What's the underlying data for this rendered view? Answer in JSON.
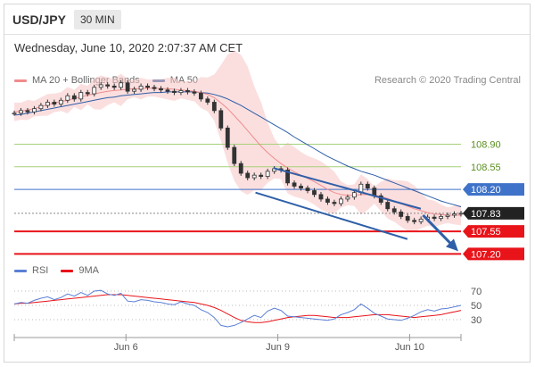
{
  "header": {
    "symbol": "USD/JPY",
    "timeframe": "30 MIN"
  },
  "datetime": "Wednesday, June 10, 2020 2:07:37 AM CET",
  "credit": "Research © 2020 Trading Central",
  "colors": {
    "ma20": "#f08c8c",
    "ma50": "#2f5fa8",
    "band": "#f7c5c5",
    "support_green": "#a6d179",
    "pivot_blue": "#3f73c9",
    "resistance_red": "#e8141a",
    "arrow": "#2f5fa8",
    "rsi": "#5a7fd6",
    "rsi_ma": "#e8141a",
    "current_price_bg": "#222222",
    "grid": "#cccccc"
  },
  "chart_data": [
    {
      "type": "line",
      "legend": [
        "MA 20 + Bollinger Bands",
        "MA 50"
      ],
      "x_tick_labels": [
        "Jun 6",
        "Jun 9",
        "Jun 10"
      ],
      "levels": [
        {
          "value": 108.9,
          "label": "108.90",
          "color": "green"
        },
        {
          "value": 108.55,
          "label": "108.55",
          "color": "green"
        },
        {
          "value": 108.2,
          "label": "108.20",
          "color": "blue"
        },
        {
          "value": 107.83,
          "label": "107.83",
          "color": "black"
        },
        {
          "value": 107.55,
          "label": "107.55",
          "color": "red"
        },
        {
          "value": 107.2,
          "label": "107.20",
          "color": "red"
        }
      ],
      "current_price": 107.83,
      "ylim": [
        107.15,
        109.75
      ],
      "series": [
        {
          "name": "Price",
          "values": [
            109.38,
            109.42,
            109.4,
            109.45,
            109.5,
            109.55,
            109.52,
            109.58,
            109.65,
            109.6,
            109.7,
            109.68,
            109.78,
            109.82,
            109.8,
            109.78,
            109.85,
            109.72,
            109.75,
            109.8,
            109.78,
            109.76,
            109.74,
            109.72,
            109.7,
            109.73,
            109.71,
            109.69,
            109.6,
            109.55,
            109.42,
            109.15,
            108.85,
            108.6,
            108.45,
            108.38,
            108.42,
            108.4,
            108.48,
            108.52,
            108.5,
            108.3,
            108.25,
            108.22,
            108.18,
            108.12,
            108.05,
            108.0,
            107.98,
            108.05,
            108.08,
            108.15,
            108.28,
            108.22,
            108.1,
            108.0,
            107.9,
            107.85,
            107.78,
            107.72,
            107.7,
            107.74,
            107.77,
            107.75,
            107.78,
            107.8,
            107.82,
            107.83
          ]
        },
        {
          "name": "MA 20",
          "values": [
            109.4,
            109.41,
            109.43,
            109.45,
            109.48,
            109.51,
            109.54,
            109.56,
            109.58,
            109.61,
            109.63,
            109.66,
            109.68,
            109.7,
            109.72,
            109.73,
            109.74,
            109.75,
            109.76,
            109.76,
            109.77,
            109.77,
            109.76,
            109.76,
            109.75,
            109.74,
            109.73,
            109.72,
            109.7,
            109.67,
            109.62,
            109.54,
            109.45,
            109.34,
            109.23,
            109.11,
            108.99,
            108.87,
            108.77,
            108.68,
            108.6,
            108.53,
            108.47,
            108.42,
            108.37,
            108.32,
            108.26,
            108.2,
            108.15,
            108.12,
            108.11,
            108.11,
            108.12,
            108.12,
            108.11,
            108.09,
            108.06,
            108.02,
            107.98,
            107.94,
            107.9,
            107.87,
            107.84,
            107.82,
            107.81,
            107.8,
            107.8,
            107.8
          ]
        },
        {
          "name": "MA 50",
          "values": [
            109.35,
            109.36,
            109.38,
            109.4,
            109.42,
            109.44,
            109.46,
            109.48,
            109.5,
            109.52,
            109.54,
            109.56,
            109.58,
            109.6,
            109.62,
            109.63,
            109.65,
            109.66,
            109.67,
            109.68,
            109.69,
            109.7,
            109.7,
            109.71,
            109.71,
            109.71,
            109.71,
            109.71,
            109.7,
            109.69,
            109.67,
            109.64,
            109.6,
            109.55,
            109.5,
            109.44,
            109.38,
            109.32,
            109.26,
            109.2,
            109.14,
            109.08,
            109.01,
            108.95,
            108.89,
            108.83,
            108.77,
            108.71,
            108.66,
            108.61,
            108.56,
            108.52,
            108.48,
            108.45,
            108.42,
            108.38,
            108.34,
            108.3,
            108.26,
            108.22,
            108.18,
            108.14,
            108.1,
            108.06,
            108.02,
            107.99,
            107.96,
            107.93
          ]
        }
      ]
    },
    {
      "type": "line",
      "legend": [
        "RSI",
        "9MA"
      ],
      "y_ticks": [
        70,
        50,
        30
      ],
      "ylim": [
        15,
        85
      ],
      "series": [
        {
          "name": "RSI",
          "values": [
            52,
            54,
            53,
            57,
            60,
            62,
            58,
            61,
            66,
            63,
            68,
            64,
            70,
            71,
            66,
            64,
            67,
            56,
            55,
            58,
            57,
            55,
            54,
            52,
            51,
            55,
            52,
            50,
            44,
            40,
            33,
            22,
            20,
            22,
            26,
            31,
            36,
            33,
            42,
            46,
            43,
            35,
            34,
            33,
            32,
            31,
            30,
            29,
            31,
            37,
            40,
            44,
            52,
            46,
            39,
            35,
            31,
            30,
            29,
            32,
            36,
            41,
            44,
            42,
            45,
            46,
            48,
            50
          ]
        },
        {
          "name": "9MA",
          "values": [
            52,
            53,
            53,
            54,
            55,
            56,
            57,
            58,
            59,
            60,
            61,
            62,
            63,
            64,
            65,
            65,
            65,
            64,
            63,
            62,
            61,
            60,
            59,
            58,
            57,
            56,
            55,
            54,
            52,
            50,
            47,
            43,
            38,
            33,
            29,
            27,
            26,
            26,
            27,
            29,
            31,
            33,
            34,
            35,
            36,
            36,
            35,
            34,
            33,
            33,
            33,
            34,
            35,
            36,
            37,
            37,
            37,
            36,
            35,
            34,
            33,
            34,
            35,
            36,
            37,
            39,
            41,
            43
          ]
        }
      ]
    }
  ]
}
